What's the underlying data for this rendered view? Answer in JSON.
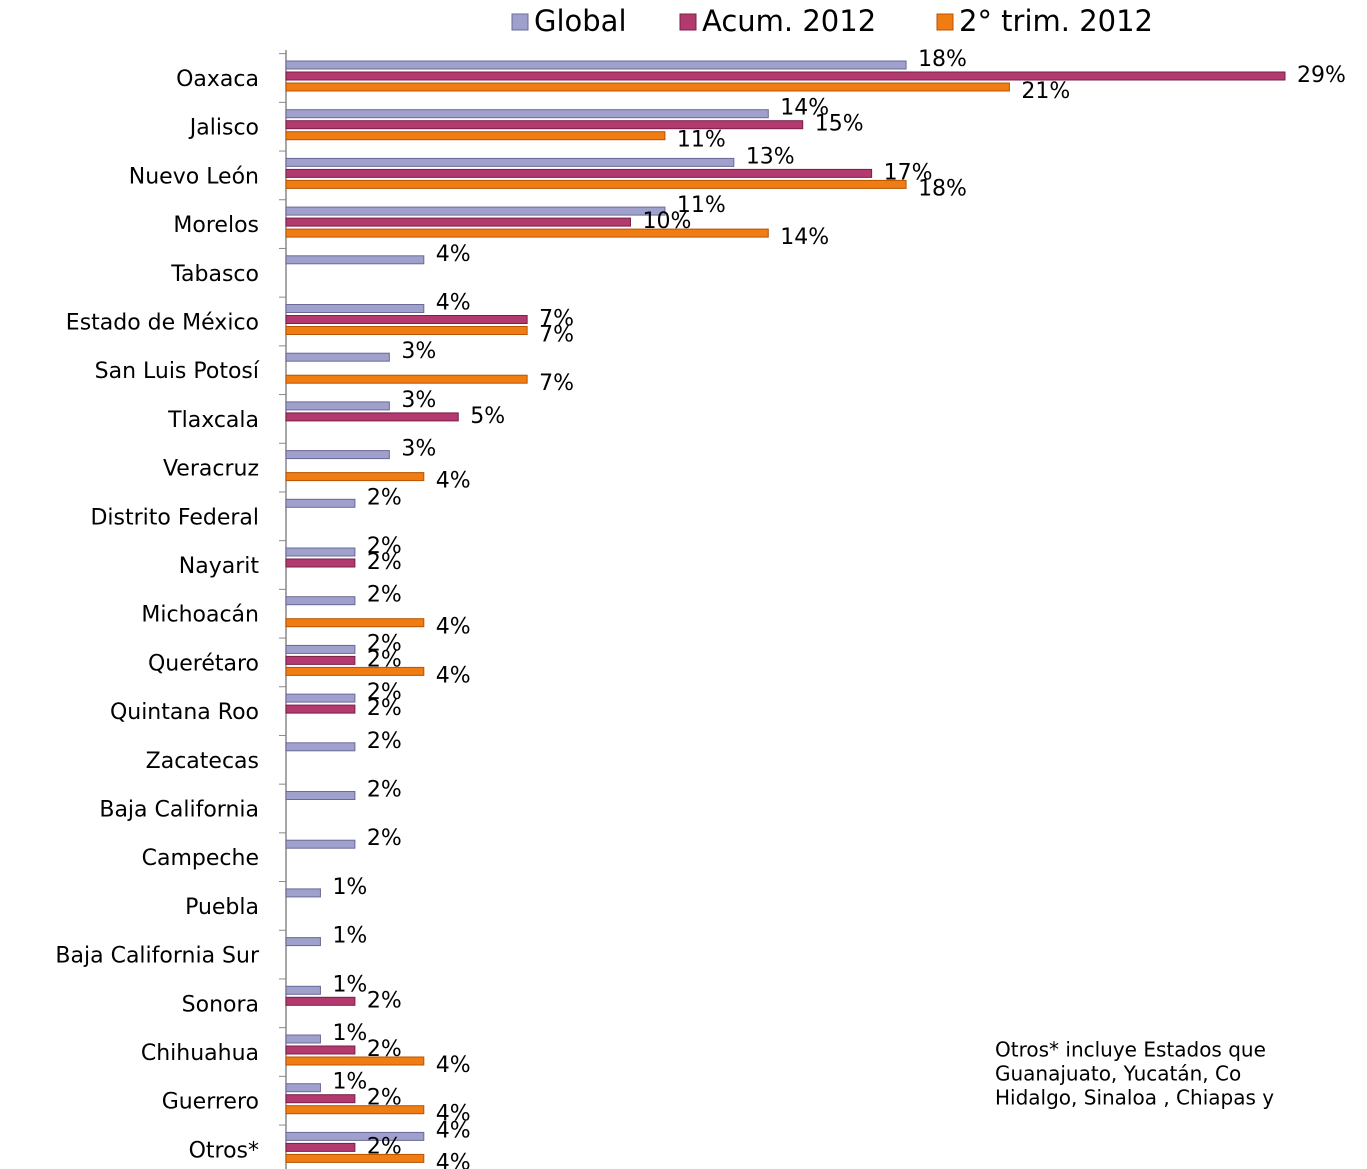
{
  "chart_data": {
    "type": "bar",
    "orientation": "horizontal",
    "categories": [
      "Oaxaca",
      "Jalisco",
      "Nuevo León",
      "Morelos",
      "Tabasco",
      "Estado de México",
      "San Luis Potosí",
      "Tlaxcala",
      "Veracruz",
      "Distrito Federal",
      "Nayarit",
      "Michoacán",
      "Querétaro",
      "Quintana Roo",
      "Zacatecas",
      "Baja California",
      "Campeche",
      "Puebla",
      "Baja California Sur",
      "Sonora",
      "Chihuahua",
      "Guerrero",
      "Otros*"
    ],
    "series": [
      {
        "name": "Global",
        "color": "#a0a0cc",
        "values": [
          18,
          14,
          13,
          11,
          4,
          4,
          3,
          3,
          3,
          2,
          2,
          2,
          2,
          2,
          2,
          2,
          2,
          1,
          1,
          1,
          1,
          1,
          4
        ],
        "value_labels": [
          "18%",
          "14%",
          "13%",
          "11%",
          "4%",
          "4%",
          "3%",
          "3%",
          "3%",
          "2%",
          "2%",
          "2%",
          "2%",
          "2%",
          "2%",
          "2%",
          "2%",
          "1%",
          "1%",
          "1%",
          "1%",
          "1%",
          "4%"
        ]
      },
      {
        "name": "Acum. 2012",
        "color": "#b23a6e",
        "values": [
          29,
          15,
          17,
          10,
          null,
          7,
          null,
          5,
          null,
          null,
          2,
          null,
          2,
          2,
          null,
          null,
          null,
          null,
          null,
          2,
          2,
          2,
          2
        ],
        "value_labels": [
          "29%",
          "15%",
          "17%",
          "10%",
          null,
          "7%",
          null,
          "5%",
          null,
          null,
          "2%",
          null,
          "2%",
          "2%",
          null,
          null,
          null,
          null,
          null,
          "2%",
          "2%",
          "2%",
          "2%"
        ]
      },
      {
        "name": "2° trim. 2012",
        "color": "#f07c14",
        "values": [
          21,
          11,
          18,
          14,
          null,
          7,
          7,
          null,
          4,
          null,
          null,
          4,
          4,
          null,
          null,
          null,
          null,
          null,
          null,
          null,
          4,
          4,
          4
        ],
        "value_labels": [
          "21%",
          "11%",
          "18%",
          "14%",
          null,
          "7%",
          "7%",
          null,
          "4%",
          null,
          null,
          "4%",
          "4%",
          null,
          null,
          null,
          null,
          null,
          null,
          null,
          "4%",
          "4%",
          "4%"
        ]
      }
    ],
    "xlim": [
      0,
      29
    ],
    "note": [
      "Otros* incluye Estados que",
      "Guanajuato,   Yucatán,   Co",
      "Hidalgo, Sinaloa , Chiapas y"
    ]
  }
}
